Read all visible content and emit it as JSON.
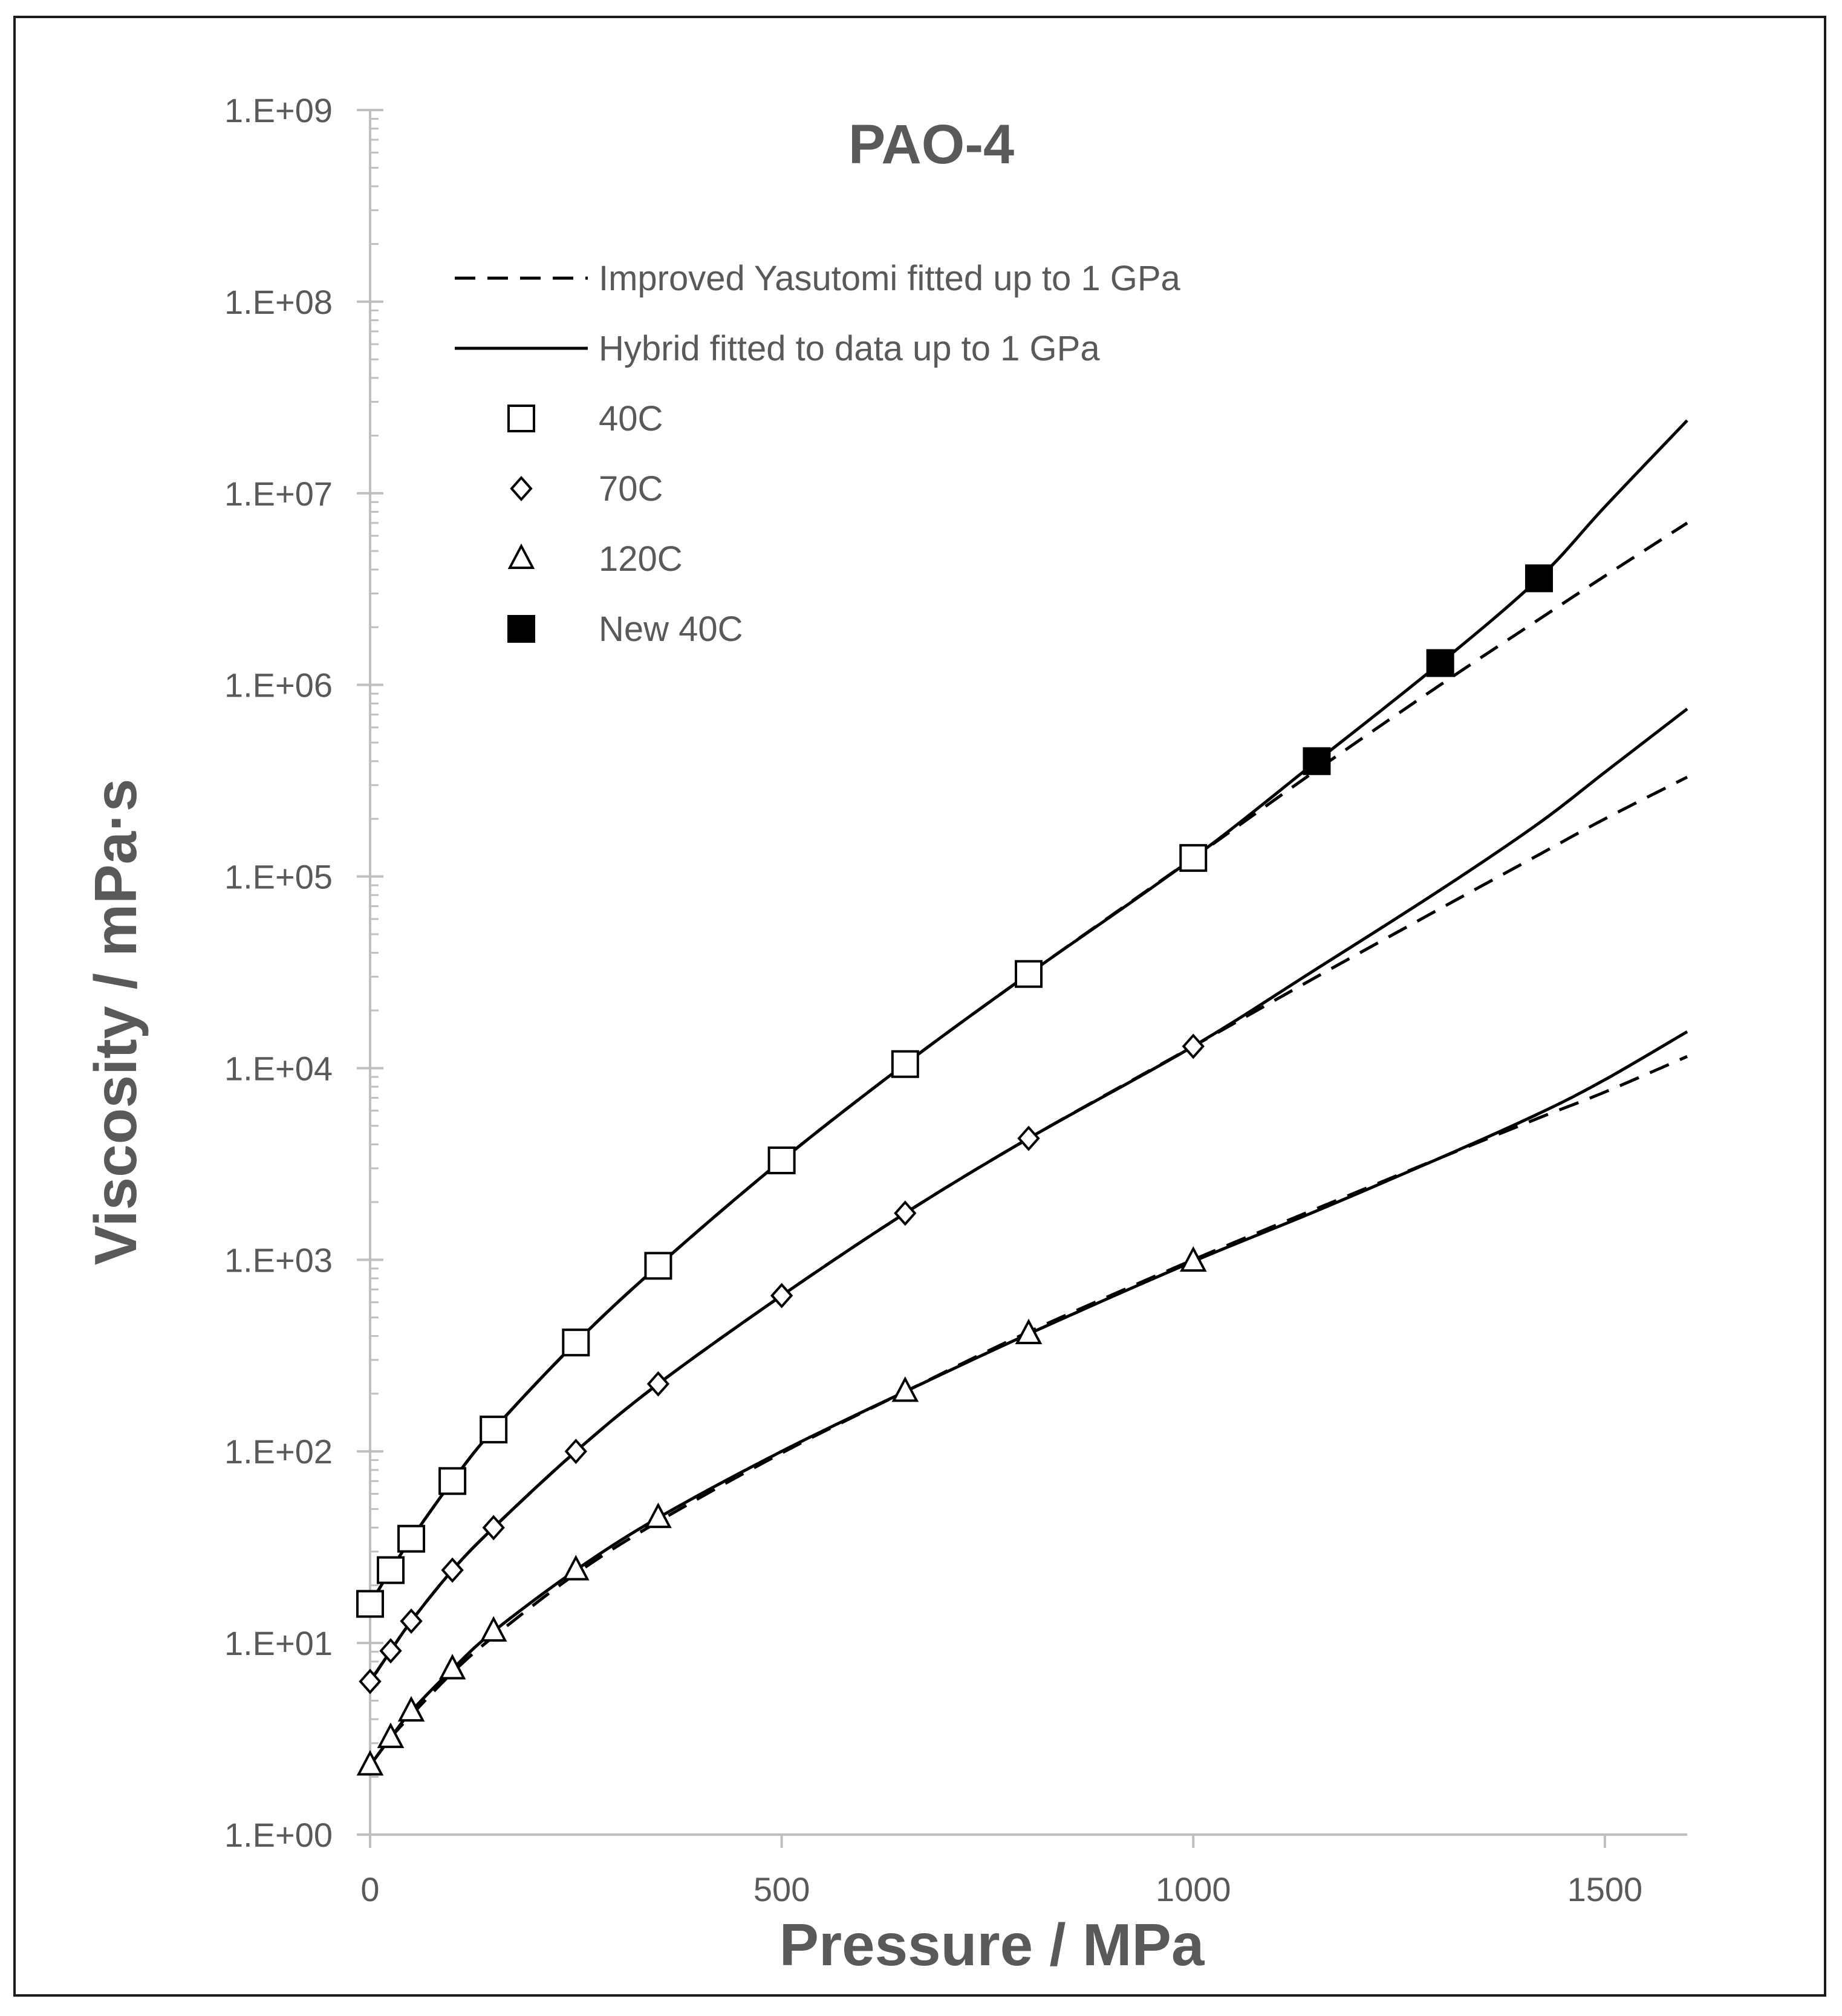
{
  "chart_data": {
    "type": "scatter",
    "title": "PAO-4",
    "xlabel": "Pressure / MPa",
    "ylabel": "Viscosity / mPa·s",
    "xlim": [
      0,
      1600
    ],
    "ylim": [
      1,
      1000000000
    ],
    "yscale": "log",
    "x_ticks": [
      0,
      500,
      1000,
      1500
    ],
    "y_ticks": [
      {
        "value": 1,
        "label": "1.E+00"
      },
      {
        "value": 10,
        "label": "1.E+01"
      },
      {
        "value": 100,
        "label": "1.E+02"
      },
      {
        "value": 1000,
        "label": "1.E+03"
      },
      {
        "value": 10000,
        "label": "1.E+04"
      },
      {
        "value": 100000,
        "label": "1.E+05"
      },
      {
        "value": 1000000,
        "label": "1.E+06"
      },
      {
        "value": 10000000,
        "label": "1.E+07"
      },
      {
        "value": 100000000,
        "label": "1.E+08"
      },
      {
        "value": 1000000000,
        "label": "1.E+09"
      }
    ],
    "grid": false,
    "legend": {
      "position": "top-left",
      "entries": [
        {
          "label": "Improved Yasutomi fitted up to 1 GPa",
          "style": "dashed-line"
        },
        {
          "label": "Hybrid fitted to data up to 1 GPa",
          "style": "solid-line"
        },
        {
          "label": "40C",
          "style": "open-square"
        },
        {
          "label": "70C",
          "style": "open-diamond"
        },
        {
          "label": "120C",
          "style": "open-triangle"
        },
        {
          "label": "New 40C",
          "style": "filled-square"
        }
      ]
    },
    "series": [
      {
        "name": "40C",
        "marker": "open-square",
        "x": [
          0,
          25,
          50,
          100,
          150,
          250,
          350,
          500,
          650,
          800,
          1000
        ],
        "y": [
          16,
          24,
          35,
          70,
          130,
          370,
          930,
          3300,
          10500,
          31000,
          125000
        ]
      },
      {
        "name": "70C",
        "marker": "open-diamond",
        "x": [
          0,
          25,
          50,
          100,
          150,
          250,
          350,
          500,
          650,
          800,
          1000
        ],
        "y": [
          6.3,
          9.1,
          13,
          24,
          40,
          100,
          225,
          650,
          1750,
          4300,
          13000
        ]
      },
      {
        "name": "120C",
        "marker": "open-triangle",
        "x": [
          0,
          25,
          50,
          100,
          150,
          250,
          350,
          650,
          800,
          1000
        ],
        "y": [
          2.3,
          3.2,
          4.4,
          7.3,
          11.5,
          24,
          45,
          205,
          410,
          980
        ]
      },
      {
        "name": "New 40C",
        "marker": "filled-square",
        "x": [
          1150,
          1300,
          1420
        ],
        "y": [
          400000,
          1300000,
          3600000
        ]
      }
    ],
    "curves": [
      {
        "name": "Hybrid 40C",
        "style": "solid",
        "x": [
          0,
          25,
          50,
          100,
          150,
          250,
          350,
          500,
          650,
          800,
          1000,
          1150,
          1300,
          1420,
          1500,
          1600
        ],
        "y": [
          16,
          24,
          35,
          70,
          130,
          370,
          930,
          3300,
          10500,
          31000,
          125000,
          400000,
          1300000,
          3600000,
          8500000,
          24000000
        ]
      },
      {
        "name": "Improved Yasutomi 40C",
        "style": "dashed",
        "x": [
          0,
          25,
          50,
          100,
          150,
          250,
          350,
          500,
          650,
          800,
          1000,
          1150,
          1300,
          1420,
          1500,
          1600
        ],
        "y": [
          16,
          24,
          35,
          70,
          130,
          370,
          930,
          3300,
          10500,
          31000,
          125000,
          360000,
          1000000,
          2200000,
          3700000,
          7000000
        ]
      },
      {
        "name": "Hybrid 70C",
        "style": "solid",
        "x": [
          0,
          25,
          50,
          100,
          150,
          250,
          350,
          500,
          650,
          800,
          1000,
          1150,
          1300,
          1420,
          1500,
          1600
        ],
        "y": [
          6.3,
          9.1,
          13,
          24,
          40,
          100,
          225,
          650,
          1750,
          4300,
          13000,
          33000,
          85000,
          190000,
          350000,
          750000
        ]
      },
      {
        "name": "Improved Yasutomi 70C",
        "style": "dashed",
        "x": [
          0,
          25,
          50,
          100,
          150,
          250,
          350,
          500,
          650,
          800,
          1000,
          1150,
          1300,
          1420,
          1500,
          1600
        ],
        "y": [
          6.3,
          9.1,
          13,
          24,
          40,
          100,
          225,
          650,
          1750,
          4300,
          13000,
          30000,
          68000,
          130000,
          200000,
          330000
        ]
      },
      {
        "name": "Hybrid 120C",
        "style": "solid",
        "x": [
          0,
          25,
          50,
          100,
          150,
          250,
          350,
          500,
          650,
          800,
          1000,
          1150,
          1300,
          1420,
          1500,
          1600
        ],
        "y": [
          2.3,
          3.2,
          4.4,
          7.3,
          11.5,
          24,
          45,
          100,
          205,
          410,
          980,
          1800,
          3400,
          5800,
          8700,
          15500
        ]
      },
      {
        "name": "Improved Yasutomi 120C",
        "style": "dashed",
        "x": [
          0,
          25,
          50,
          100,
          150,
          250,
          350,
          500,
          650,
          800,
          1000,
          1150,
          1300,
          1420,
          1500,
          1600
        ],
        "y": [
          2.3,
          3.2,
          4.2,
          7.0,
          10.8,
          23,
          43,
          98,
          205,
          420,
          1000,
          1850,
          3400,
          5500,
          7500,
          11500
        ]
      }
    ]
  }
}
